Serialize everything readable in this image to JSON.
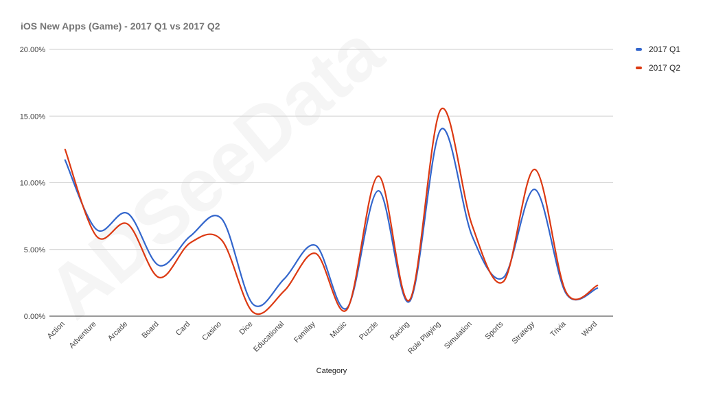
{
  "chart_data": {
    "type": "line",
    "title": "iOS New Apps (Game) - 2017 Q1 vs 2017 Q2",
    "xlabel": "Category",
    "ylabel": "",
    "ylim": [
      0,
      20
    ],
    "yticks": [
      "0.00%",
      "5.00%",
      "10.00%",
      "15.00%",
      "20.00%"
    ],
    "ytick_values": [
      0,
      5,
      10,
      15,
      20
    ],
    "grid": true,
    "legend_position": "right",
    "watermark": "ADSeeData",
    "categories": [
      "Action",
      "Adventure",
      "Arcade",
      "Board",
      "Card",
      "Casino",
      "Dice",
      "Educational",
      "Familay",
      "Music",
      "Puzzle",
      "Racing",
      "Role Playing",
      "Simulation",
      "Sports",
      "Strategy",
      "Trivia",
      "Word"
    ],
    "series": [
      {
        "name": "2017 Q1",
        "color": "#3366cc",
        "values": [
          11.7,
          6.5,
          7.7,
          3.8,
          6.0,
          7.3,
          0.9,
          2.8,
          5.3,
          0.6,
          9.4,
          1.1,
          14.0,
          6.0,
          2.9,
          9.5,
          1.7,
          2.1
        ]
      },
      {
        "name": "2017 Q2",
        "color": "#dc3912",
        "values": [
          12.5,
          6.0,
          6.9,
          2.9,
          5.5,
          5.7,
          0.3,
          1.9,
          4.7,
          0.5,
          10.5,
          1.2,
          15.5,
          6.8,
          2.6,
          11.0,
          1.8,
          2.3
        ]
      }
    ]
  }
}
